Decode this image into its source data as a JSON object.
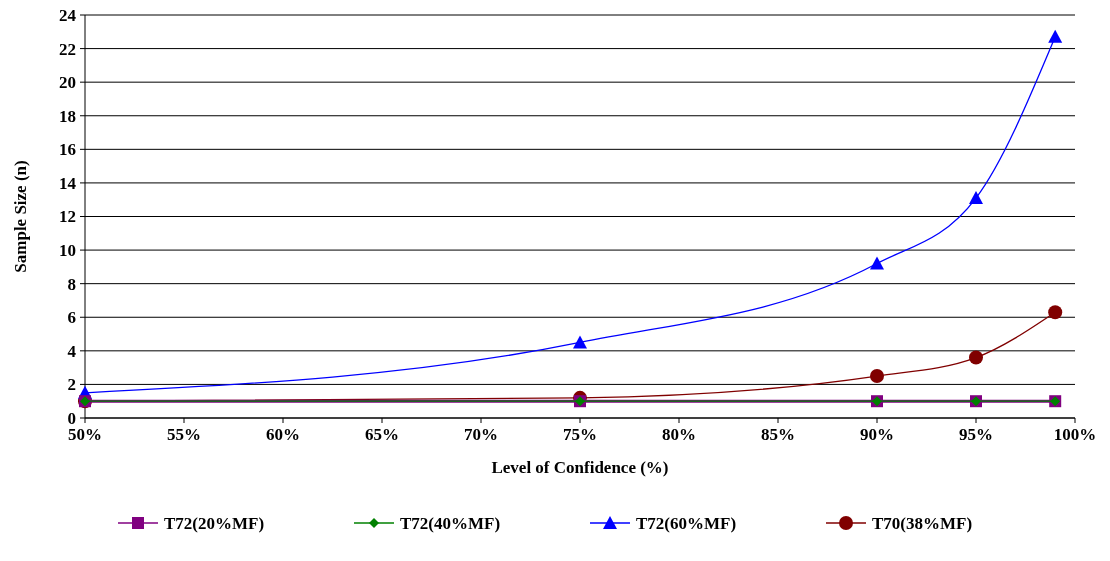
{
  "chart_data": {
    "type": "line",
    "xlabel": "Level of Confidence (%)",
    "ylabel": "Sample Size (n)",
    "x": [
      50,
      75,
      90,
      95,
      99
    ],
    "xlim": [
      50,
      100
    ],
    "xticks": [
      {
        "value": 50,
        "label": "50%"
      },
      {
        "value": 55,
        "label": "55%"
      },
      {
        "value": 60,
        "label": "60%"
      },
      {
        "value": 65,
        "label": "65%"
      },
      {
        "value": 70,
        "label": "70%"
      },
      {
        "value": 75,
        "label": "75%"
      },
      {
        "value": 80,
        "label": "80%"
      },
      {
        "value": 85,
        "label": "85%"
      },
      {
        "value": 90,
        "label": "90%"
      },
      {
        "value": 95,
        "label": "95%"
      },
      {
        "value": 100,
        "label": "100%"
      }
    ],
    "ylim": [
      0,
      24
    ],
    "yticks": [
      0,
      2,
      4,
      6,
      8,
      10,
      12,
      14,
      16,
      18,
      20,
      22,
      24
    ],
    "grid": "y",
    "legend": "bottom",
    "line_style": "solid",
    "series": [
      {
        "name": "T72(20%MF)",
        "color": "#800080",
        "marker": "square",
        "values": [
          1,
          1,
          1,
          1,
          1
        ]
      },
      {
        "name": "T72(40%MF)",
        "color": "#008000",
        "marker": "diamond",
        "values": [
          1,
          1,
          1,
          1,
          1
        ]
      },
      {
        "name": "T72(60%MF)",
        "color": "#0000ff",
        "marker": "triangle",
        "values": [
          1.5,
          4.5,
          9.2,
          13.1,
          22.7
        ]
      },
      {
        "name": "T70(38%MF)",
        "color": "#800000",
        "marker": "circle",
        "values": [
          1.0,
          1.2,
          2.5,
          3.6,
          6.3
        ]
      }
    ]
  }
}
